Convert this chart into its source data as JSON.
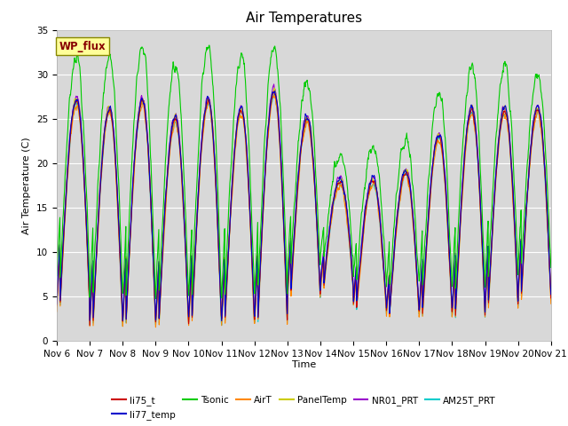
{
  "title": "Air Temperatures",
  "xlabel": "Time",
  "ylabel": "Air Temperature (C)",
  "ylim": [
    0,
    35
  ],
  "yticks": [
    0,
    5,
    10,
    15,
    20,
    25,
    30,
    35
  ],
  "x_labels": [
    "Nov 6",
    "Nov 7",
    "Nov 8",
    "Nov 9",
    "Nov 10",
    "Nov 11",
    "Nov 12",
    "Nov 13",
    "Nov 14",
    "Nov 15",
    "Nov 16",
    "Nov 17",
    "Nov 18",
    "Nov 19",
    "Nov 20",
    "Nov 21"
  ],
  "annotation_text": "WP_flux",
  "series_colors": {
    "li75_t": "#cc0000",
    "li77_temp": "#0000cc",
    "Tsonic": "#00cc00",
    "AirT": "#ff8800",
    "PanelTemp": "#cccc00",
    "NR01_PRT": "#9900cc",
    "AM25T_PRT": "#00cccc"
  },
  "legend_order": [
    "li75_t",
    "li77_temp",
    "Tsonic",
    "AirT",
    "PanelTemp",
    "NR01_PRT",
    "AM25T_PRT"
  ],
  "bg_color": "#d8d8d8",
  "fig_bg_color": "#ffffff",
  "grid_color": "#ffffff",
  "day_amps": [
    23,
    24,
    25,
    23,
    25,
    24,
    26,
    20,
    12,
    14,
    16,
    20,
    23,
    22,
    21
  ],
  "day_mins": [
    4,
    2,
    2,
    2,
    2,
    2,
    2,
    5,
    6,
    4,
    3,
    3,
    3,
    4,
    5
  ],
  "tsonic_day_extra": [
    5,
    6,
    6,
    6,
    6,
    6,
    5,
    4,
    3,
    4,
    4,
    5,
    5,
    5,
    4
  ],
  "tsonic_night_extra": [
    3,
    3,
    3,
    3,
    3,
    3,
    3,
    3,
    3,
    3,
    3,
    3,
    3,
    3,
    3
  ]
}
